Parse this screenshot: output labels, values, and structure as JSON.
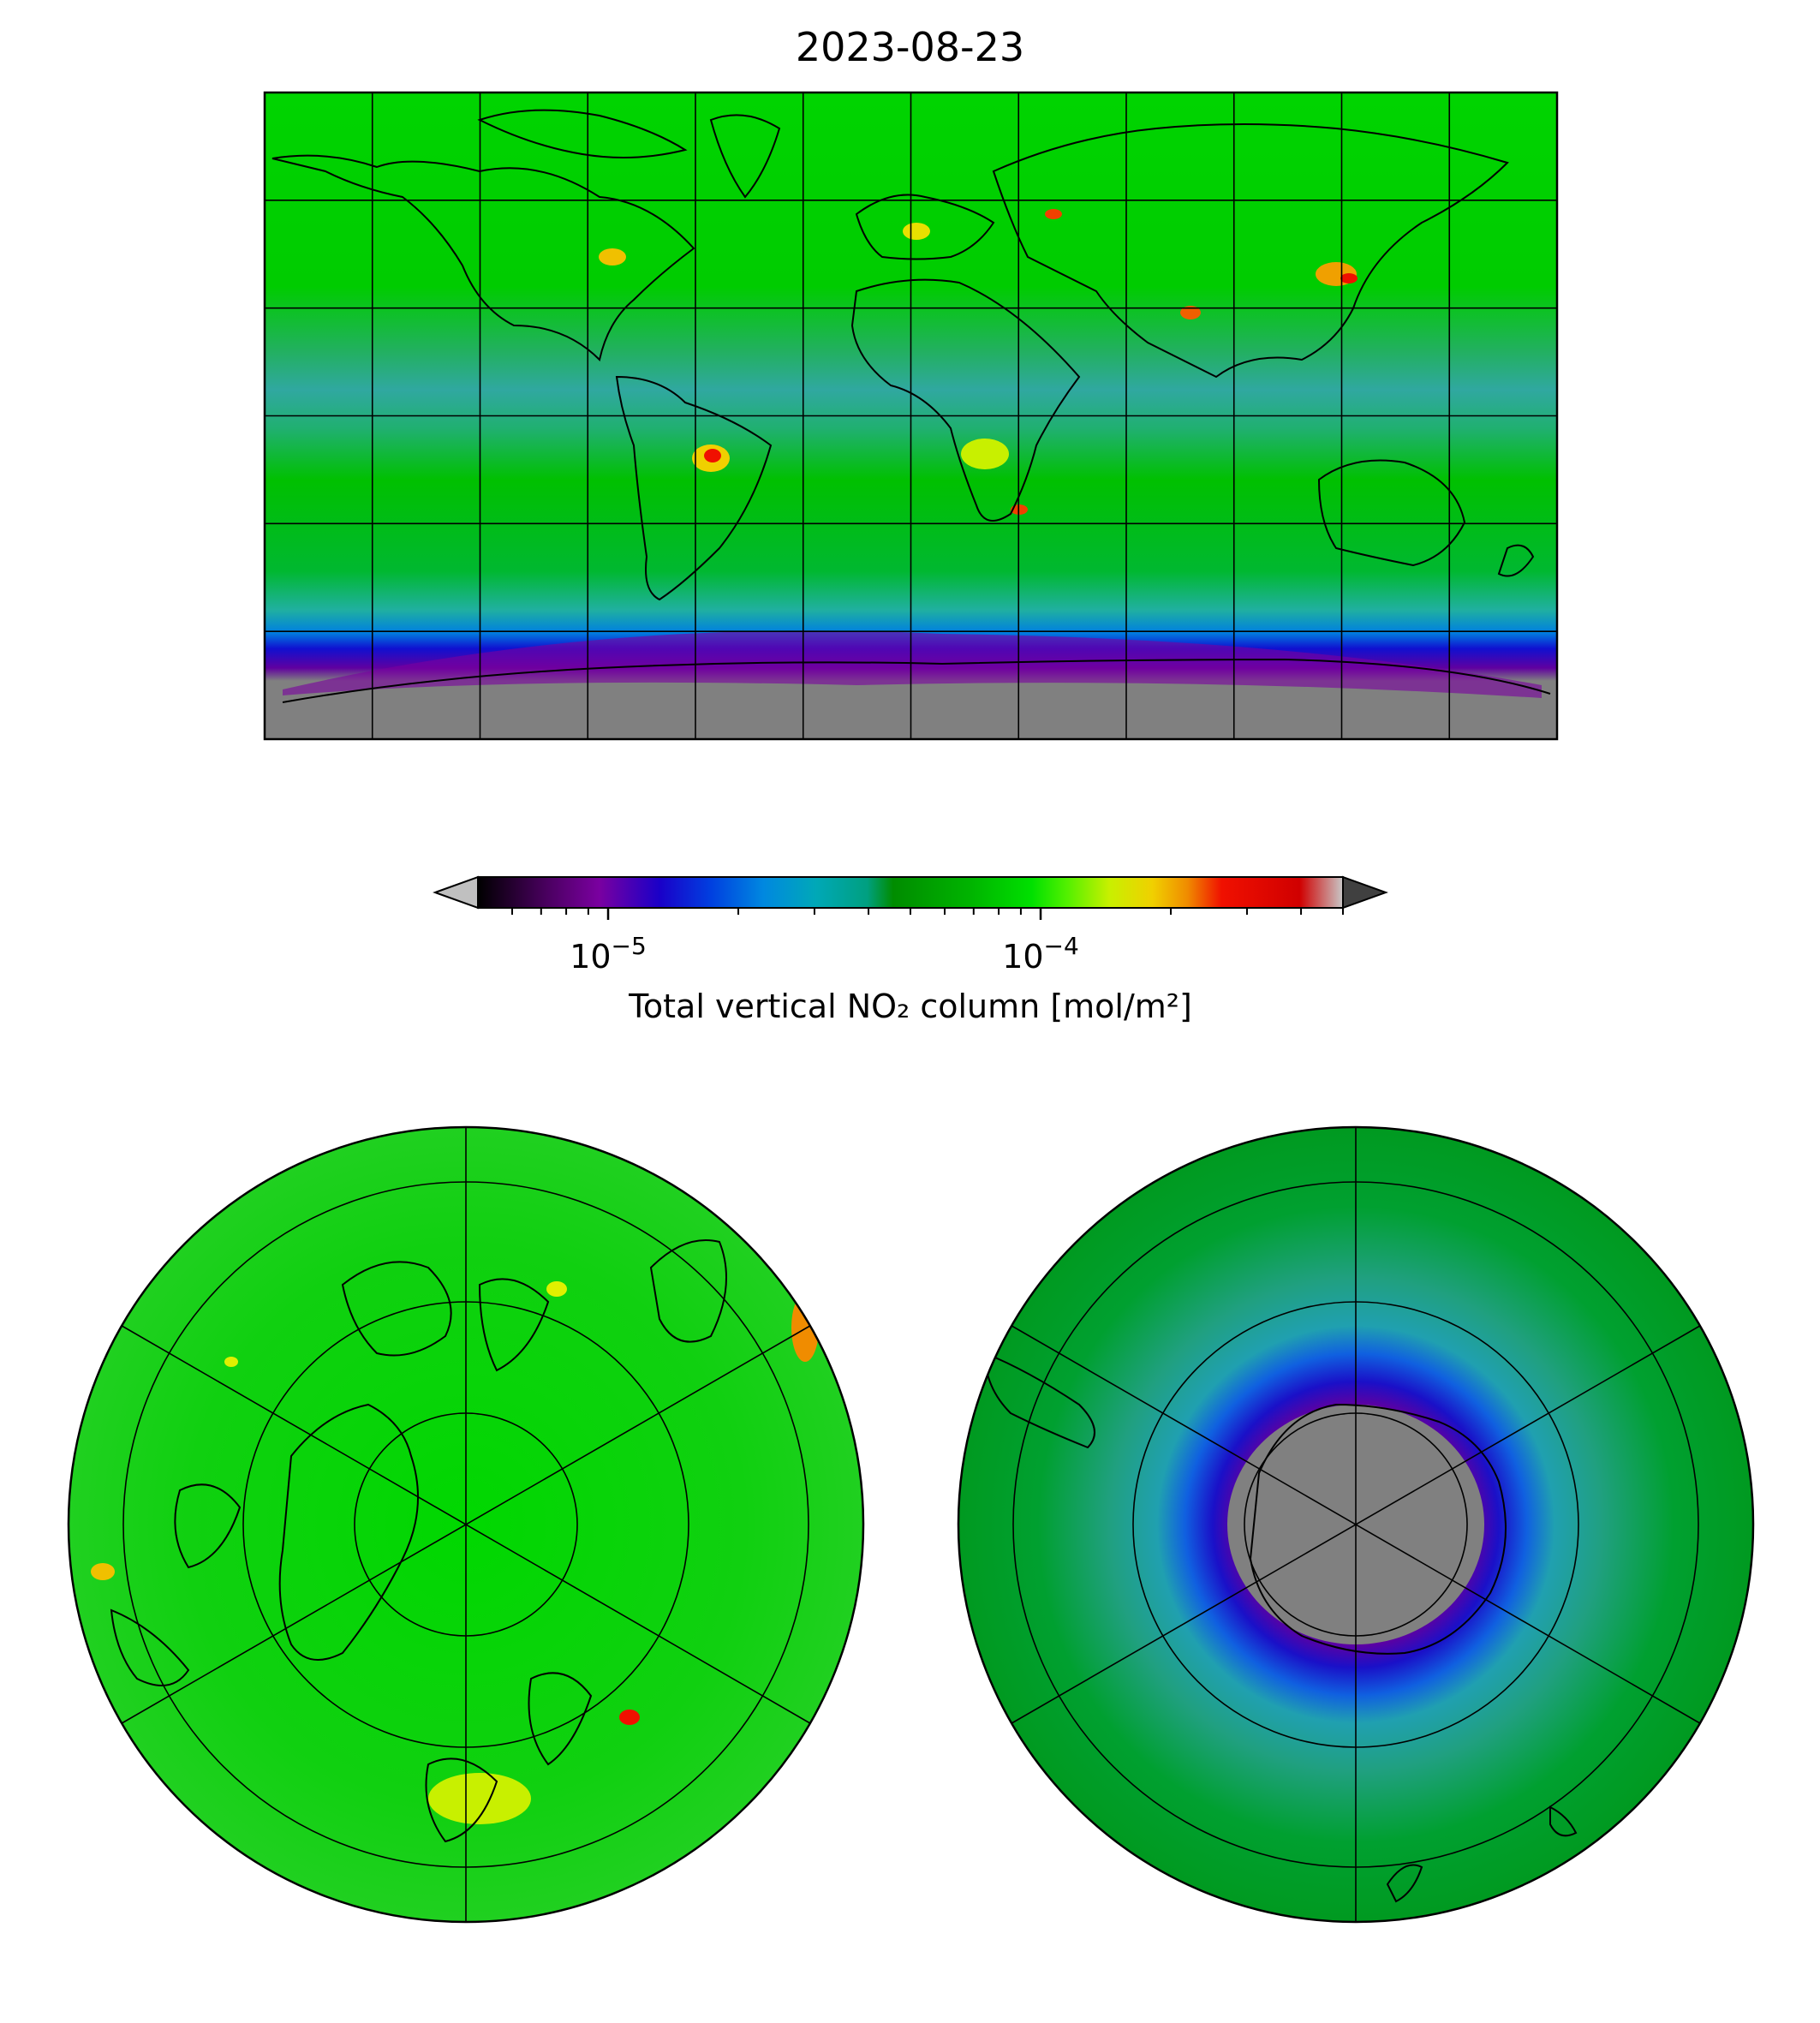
{
  "title": "2023-08-23",
  "colorbar": {
    "label": "Total vertical NO₂ column [mol/m²]",
    "scale": "log",
    "range": [
      5e-06,
      0.0005
    ],
    "ticks": [
      {
        "value": 1e-05,
        "base": "10",
        "exp": "−5"
      },
      {
        "value": 0.0001,
        "base": "10",
        "exp": "−4"
      }
    ],
    "extend": "both",
    "under_color": "#c0c0c0",
    "over_color": "#404040",
    "colormap": [
      "#000000",
      "#4a0060",
      "#7a00a0",
      "#1a00c8",
      "#0040e0",
      "#0088e0",
      "#00a8b8",
      "#00a080",
      "#008c00",
      "#00b400",
      "#00e000",
      "#50f000",
      "#c8f000",
      "#f0d000",
      "#f08c00",
      "#f01000",
      "#d00000",
      "#c8c8c8"
    ]
  },
  "maps": {
    "global": {
      "projection": "plate-carree",
      "lon_range": [
        -180,
        180
      ],
      "lat_range": [
        -90,
        90
      ],
      "gridlines_lon": 30,
      "gridlines_lat": 30,
      "missing_color": "#808080"
    },
    "north_polar": {
      "projection": "north-polar-stereographic",
      "view": "northern hemisphere"
    },
    "south_polar": {
      "projection": "south-polar-stereographic",
      "view": "southern hemisphere"
    }
  }
}
